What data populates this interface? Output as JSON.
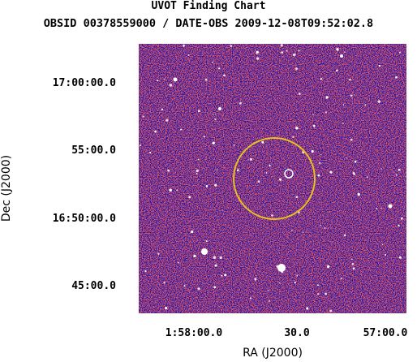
{
  "header": {
    "title": "UVOT Finding Chart",
    "subtitle": "OBSID 00378559000 / DATE-OBS 2009-12-08T09:52:02.8"
  },
  "axes": {
    "xlabel": "RA (J2000)",
    "ylabel": "Dec (J2000)",
    "xticks": [
      "1:58:00.0",
      "30.0",
      "57:00.0"
    ],
    "yticks": [
      "17:00:00.0",
      "55:00.0",
      "16:50:00.0",
      "45:00.0"
    ]
  },
  "colors": {
    "background_blue": "#1a1aa8",
    "noise_red": "#c81e1e",
    "error_circle": "#e8c020",
    "source_marker": "#ffffff"
  },
  "markers": {
    "error_circle": "yellow error circle",
    "source": "white source circle"
  }
}
